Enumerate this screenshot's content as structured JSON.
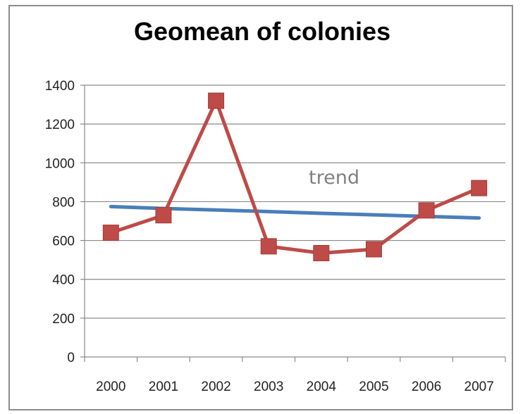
{
  "chart_data": {
    "type": "line",
    "title": "Geomean of colonies",
    "xlabel": "",
    "ylabel": "",
    "categories": [
      "2000",
      "2001",
      "2002",
      "2003",
      "2004",
      "2005",
      "2006",
      "2007"
    ],
    "ylim": [
      0,
      1400
    ],
    "yticks": [
      0,
      200,
      400,
      600,
      800,
      1000,
      1200,
      1400
    ],
    "grid": true,
    "legend": "none",
    "series": [
      {
        "values": [
          640,
          730,
          1320,
          570,
          535,
          555,
          755,
          870
        ],
        "color": "#be4b48",
        "marker": "square"
      },
      {
        "values": [
          775,
          765,
          757,
          749,
          740,
          732,
          724,
          716
        ],
        "color": "#4a7ebb",
        "marker": "none"
      }
    ],
    "annotations": [
      {
        "text": "trend"
      }
    ]
  }
}
